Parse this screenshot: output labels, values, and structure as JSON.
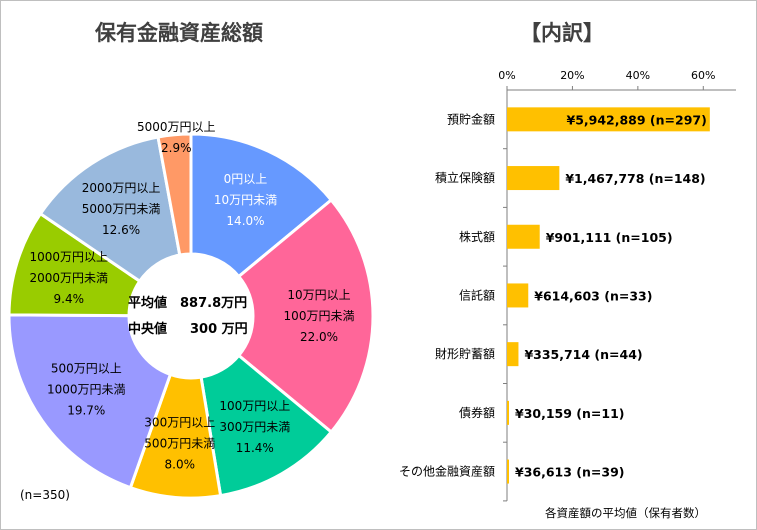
{
  "left": {
    "title": "保有金融資産総額",
    "n_note": "(n=350)",
    "center": {
      "mean_label": "平均値",
      "mean_value": "887.8万円",
      "median_label": "中央値",
      "median_value": "300 万円"
    }
  },
  "right": {
    "title": "【内訳】",
    "footnote": "各資産額の平均値（保有者数）"
  },
  "chart_data": [
    {
      "type": "pie",
      "title": "保有金融資産総額",
      "donut": true,
      "start_angle_deg": 0,
      "slices": [
        {
          "label_lines": [
            "0円以上",
            "10万円未満"
          ],
          "value": 14.0,
          "pct_label": "14.0%",
          "color": "#6699ff",
          "text_color": "#ffffff"
        },
        {
          "label_lines": [
            "10万円以上",
            "100万円未満"
          ],
          "value": 22.0,
          "pct_label": "22.0%",
          "color": "#ff6699",
          "text_color": "#000000"
        },
        {
          "label_lines": [
            "100万円以上",
            "300万円未満"
          ],
          "value": 11.4,
          "pct_label": "11.4%",
          "color": "#00cc99",
          "text_color": "#000000"
        },
        {
          "label_lines": [
            "300万円以上",
            "500万円未満"
          ],
          "value": 8.0,
          "pct_label": "8.0%",
          "color": "#ffc000",
          "text_color": "#000000"
        },
        {
          "label_lines": [
            "500万円以上",
            "1000万円未満"
          ],
          "value": 19.7,
          "pct_label": "19.7%",
          "color": "#9999ff",
          "text_color": "#000000"
        },
        {
          "label_lines": [
            "1000万円以上",
            "2000万円未満"
          ],
          "value": 9.4,
          "pct_label": "9.4%",
          "color": "#99cc00",
          "text_color": "#000000"
        },
        {
          "label_lines": [
            "2000万円以上",
            "5000万円未満"
          ],
          "value": 12.6,
          "pct_label": "12.6%",
          "color": "#99b9dd",
          "text_color": "#000000"
        },
        {
          "label_lines": [
            "5000万円以上"
          ],
          "value": 2.9,
          "pct_label": "2.9%",
          "color": "#ff9966",
          "text_color": "#000000"
        }
      ]
    },
    {
      "type": "bar",
      "orientation": "horizontal",
      "title": "【内訳】",
      "x_ticks": [
        "0%",
        "20%",
        "40%",
        "60%"
      ],
      "xlim": [
        0,
        70
      ],
      "bar_color": "#ffc000",
      "categories": [
        "預貯金額",
        "積立保険額",
        "株式額",
        "信託額",
        "財形貯蓄額",
        "債券額",
        "その他金融資産額"
      ],
      "values": [
        62,
        16,
        10,
        6.5,
        3.5,
        0.4,
        0.4
      ],
      "data_labels": [
        "¥5,942,889 (n=297)",
        "¥1,467,778 (n=148)",
        "¥901,111 (n=105)",
        "¥614,603 (n=33)",
        "¥335,714 (n=44)",
        "¥30,159 (n=11)",
        "¥36,613 (n=39)"
      ],
      "grid": false,
      "legend": "none"
    }
  ]
}
